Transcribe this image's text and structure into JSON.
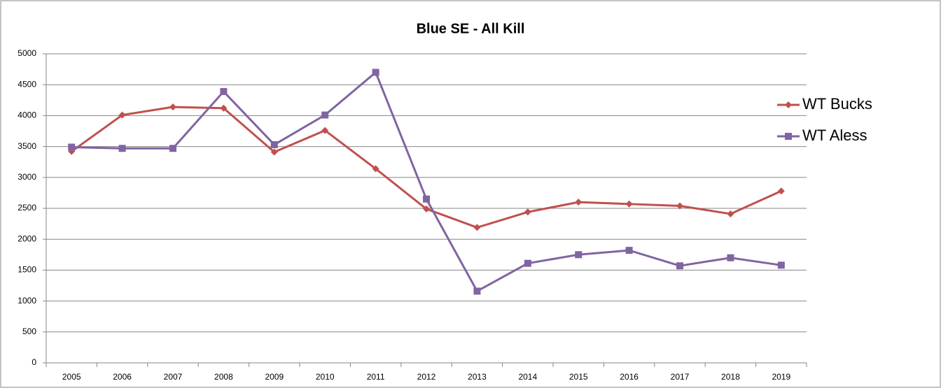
{
  "chart_data": {
    "type": "line",
    "title": "Blue SE - All Kill",
    "categories": [
      "2005",
      "2006",
      "2007",
      "2008",
      "2009",
      "2010",
      "2011",
      "2012",
      "2013",
      "2014",
      "2015",
      "2016",
      "2017",
      "2018",
      "2019"
    ],
    "series": [
      {
        "name": "WT Bucks",
        "color": "#c0504d",
        "marker": "diamond",
        "values": [
          3420,
          4010,
          4140,
          4120,
          3410,
          3760,
          3140,
          2490,
          2190,
          2440,
          2600,
          2570,
          2540,
          2410,
          2780
        ]
      },
      {
        "name": "WT Aless",
        "color": "#8064a2",
        "marker": "square",
        "values": [
          3490,
          3470,
          3470,
          4390,
          3530,
          4010,
          4700,
          2650,
          1160,
          1610,
          1750,
          1820,
          1570,
          1700,
          1580
        ]
      }
    ],
    "ylim": [
      0,
      5000
    ],
    "yticks": [
      0,
      500,
      1000,
      1500,
      2000,
      2500,
      3000,
      3500,
      4000,
      4500,
      5000
    ],
    "grid": true,
    "legend": "right"
  }
}
